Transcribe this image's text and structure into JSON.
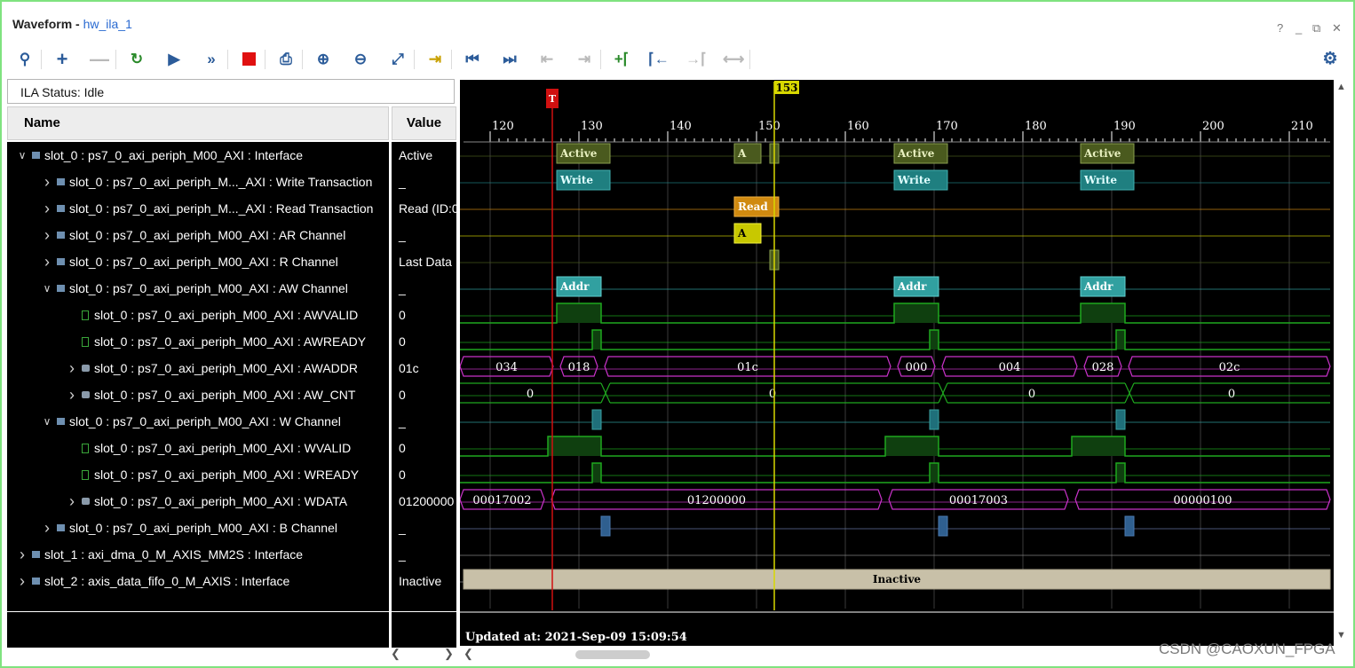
{
  "window": {
    "title_bold": "Waveform - ",
    "title_sub": "hw_ila_1",
    "controls": [
      "?",
      "_",
      "⧉",
      "✕"
    ]
  },
  "toolbar": {
    "icons": [
      "search-icon",
      "add-icon",
      "remove-icon",
      "refresh-trigger-icon",
      "run-icon",
      "run-fast-icon",
      "stop-icon",
      "export-icon",
      "zoom-in-icon",
      "zoom-out-icon",
      "zoom-fit-icon",
      "go-to-cursor-icon",
      "go-first-icon",
      "go-last-icon",
      "prev-transition-icon",
      "next-transition-icon",
      "add-marker-icon",
      "prev-marker-icon",
      "next-marker-icon",
      "swap-cursors-icon",
      "settings-icon"
    ]
  },
  "status": {
    "text": "ILA Status: Idle"
  },
  "headers": {
    "name": "Name",
    "value": "Value"
  },
  "signals": [
    {
      "level": 0,
      "expand": "open",
      "icon": "interface",
      "name": "slot_0 : ps7_0_axi_periph_M00_AXI : Interface",
      "value": "Active"
    },
    {
      "level": 1,
      "expand": "closed",
      "icon": "interface",
      "name": "slot_0 : ps7_0_axi_periph_M..._AXI : Write Transaction",
      "value": "_"
    },
    {
      "level": 1,
      "expand": "closed",
      "icon": "interface",
      "name": "slot_0 : ps7_0_axi_periph_M..._AXI : Read Transaction",
      "value": "Read (ID:0"
    },
    {
      "level": 1,
      "expand": "closed",
      "icon": "interface",
      "name": "slot_0 : ps7_0_axi_periph_M00_AXI : AR Channel",
      "value": "_"
    },
    {
      "level": 1,
      "expand": "closed",
      "icon": "interface",
      "name": "slot_0 : ps7_0_axi_periph_M00_AXI : R Channel",
      "value": "Last Data"
    },
    {
      "level": 1,
      "expand": "open",
      "icon": "interface",
      "name": "slot_0 : ps7_0_axi_periph_M00_AXI : AW Channel",
      "value": "_"
    },
    {
      "level": 2,
      "expand": "none",
      "icon": "bit",
      "name": "slot_0 : ps7_0_axi_periph_M00_AXI : AWVALID",
      "value": "0"
    },
    {
      "level": 2,
      "expand": "none",
      "icon": "bit",
      "name": "slot_0 : ps7_0_axi_periph_M00_AXI : AWREADY",
      "value": "0"
    },
    {
      "level": 2,
      "expand": "closed",
      "icon": "bus",
      "name": "slot_0 : ps7_0_axi_periph_M00_AXI : AWADDR",
      "value": "01c"
    },
    {
      "level": 2,
      "expand": "closed",
      "icon": "bus",
      "name": "slot_0 : ps7_0_axi_periph_M00_AXI : AW_CNT",
      "value": "0"
    },
    {
      "level": 1,
      "expand": "open",
      "icon": "interface",
      "name": "slot_0 : ps7_0_axi_periph_M00_AXI : W Channel",
      "value": "_"
    },
    {
      "level": 2,
      "expand": "none",
      "icon": "bit",
      "name": "slot_0 : ps7_0_axi_periph_M00_AXI : WVALID",
      "value": "0"
    },
    {
      "level": 2,
      "expand": "none",
      "icon": "bit",
      "name": "slot_0 : ps7_0_axi_periph_M00_AXI : WREADY",
      "value": "0"
    },
    {
      "level": 2,
      "expand": "closed",
      "icon": "bus",
      "name": "slot_0 : ps7_0_axi_periph_M00_AXI : WDATA",
      "value": "01200000"
    },
    {
      "level": 1,
      "expand": "closed",
      "icon": "interface",
      "name": "slot_0 : ps7_0_axi_periph_M00_AXI : B Channel",
      "value": "_"
    },
    {
      "level": 0,
      "expand": "closed",
      "icon": "interface",
      "name": "slot_1 : axi_dma_0_M_AXIS_MM2S : Interface",
      "value": "_"
    },
    {
      "level": 0,
      "expand": "closed",
      "icon": "interface",
      "name": "slot_2 : axis_data_fifo_0_M_AXIS : Interface",
      "value": "Inactive"
    }
  ],
  "timeline": {
    "ticks": [
      "120",
      "130",
      "140",
      "150",
      "160",
      "170",
      "180",
      "190",
      "200",
      "210"
    ],
    "trigger_label": "T",
    "trigger_time": 128,
    "cursor_label": "153",
    "cursor_time": 153,
    "updated": "Updated at: 2021-Sep-09 15:09:54"
  },
  "waves": {
    "labels": {
      "active1": "Active",
      "active2": "Active",
      "active3": "Active",
      "a_small": "A",
      "write1": "Write",
      "write2": "Write",
      "write3": "Write",
      "read": "Read",
      "ar_a": "A",
      "addr1": "Addr",
      "addr2": "Addr",
      "addr3": "Addr",
      "awaddr": [
        "034",
        "018",
        "01c",
        "000",
        "004",
        "028",
        "02c"
      ],
      "awcnt": [
        "0",
        "0",
        "0",
        "0"
      ],
      "wdata": [
        "00017002",
        "01200000",
        "00017003",
        "00000100"
      ],
      "inactive": "Inactive"
    },
    "colors": {
      "active": "#4a5a1e",
      "write": "#1f7f80",
      "read": "#d08a10",
      "ar": "#c8c800",
      "r": "#4a5a1e",
      "addr": "#31a0a0",
      "bit": "#1fa81f",
      "bus": "#c832c8",
      "inactive": "#c8c0a8",
      "trigger": "#d01010",
      "cursor": "#d8d800"
    }
  },
  "watermark": "CSDN @CAOXUN_FPGA"
}
